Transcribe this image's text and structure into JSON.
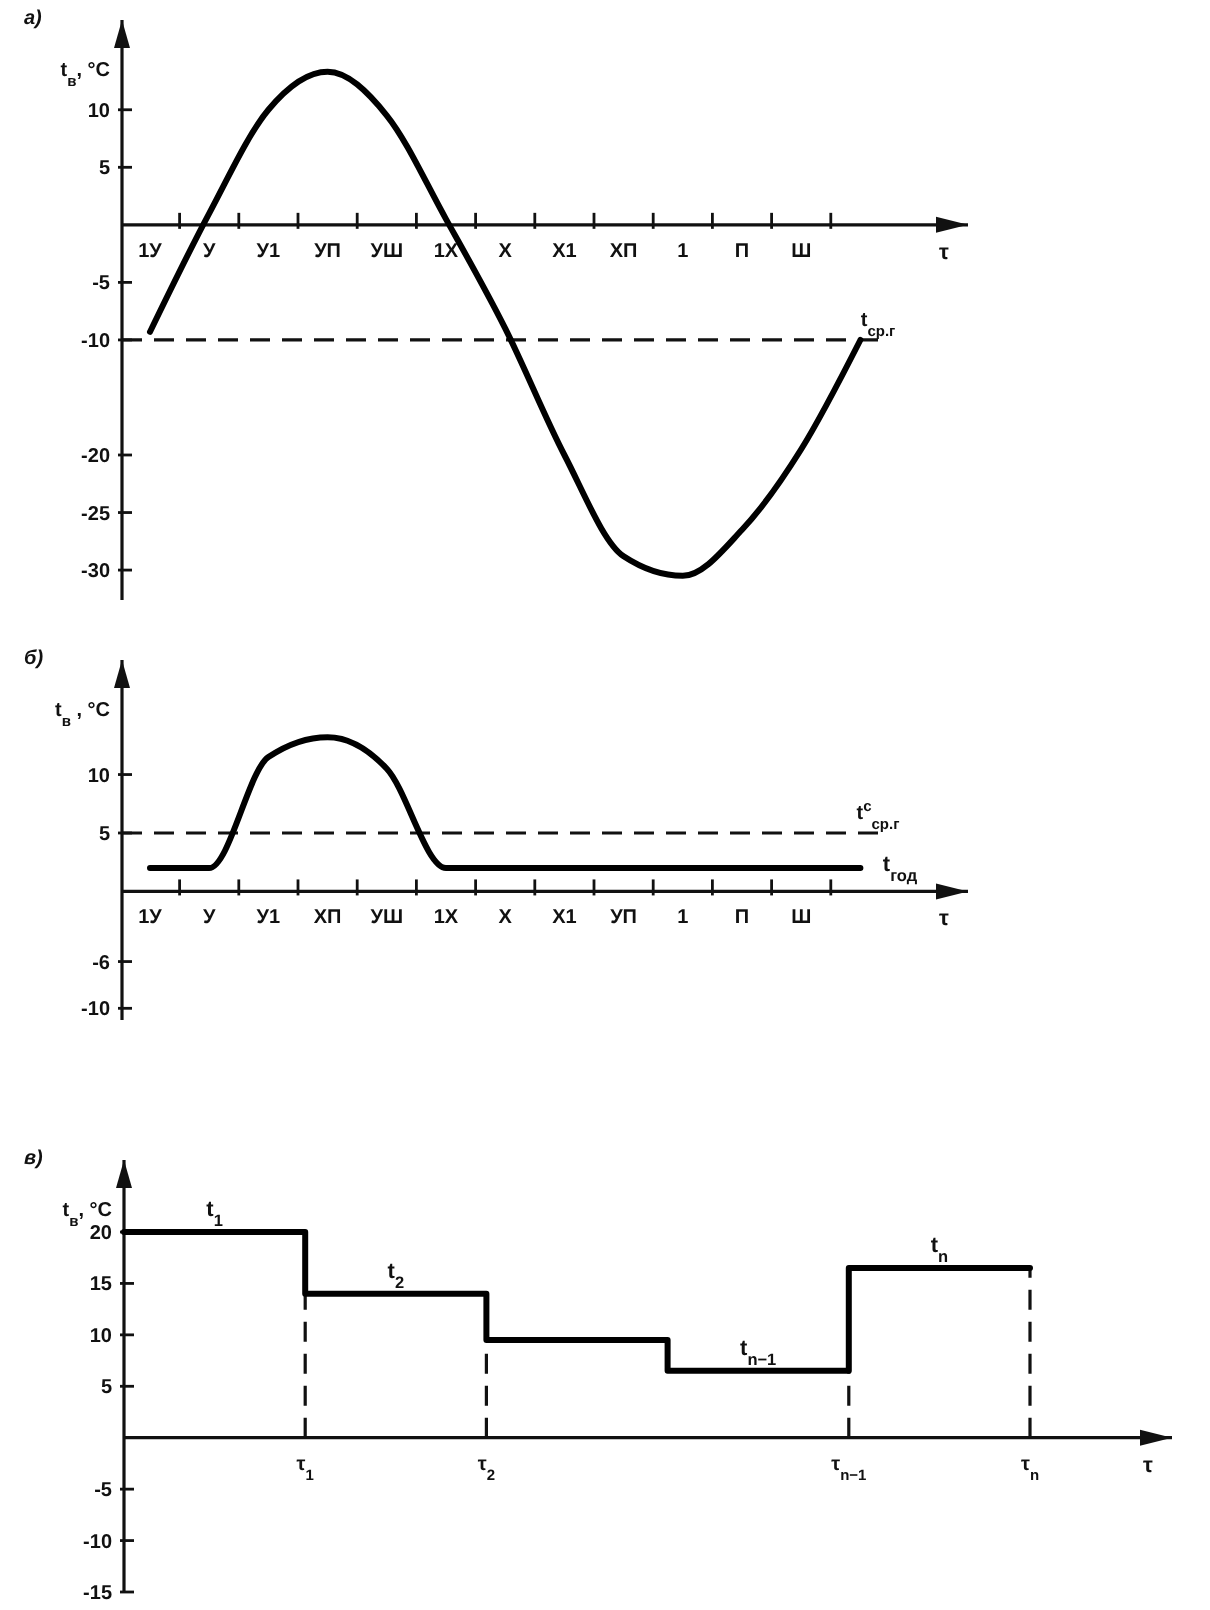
{
  "chart_data": [
    {
      "type": "line",
      "title": "а)",
      "xlabel": "τ",
      "ylabel": "t$_{в}$, °C",
      "color": "#000000",
      "categories": [
        "1У",
        "У",
        "У1",
        "УП",
        "УШ",
        "1Х",
        "Х",
        "Х1",
        "ХП",
        "1",
        "П",
        "Ш",
        null
      ],
      "values": [
        -9.3,
        1,
        10,
        13.3,
        9.5,
        0.5,
        -9,
        -20,
        -28.8,
        -30.5,
        -26.5,
        -19.5,
        -10
      ],
      "ylim": [
        -32.6,
        17.8
      ],
      "yticks": [
        10,
        5,
        -5,
        -10,
        -20,
        -25,
        -30
      ],
      "ref_lines": [
        {
          "axis": "y",
          "value": -10,
          "label": "t$_{ср.г}$",
          "line_style": "dashed"
        }
      ]
    },
    {
      "type": "line",
      "title": "б)",
      "xlabel": "τ",
      "ylabel": "t$_{в}$ , °C",
      "color": "#000000",
      "categories": [
        "1У",
        "У",
        "У1",
        "ХП",
        "УШ",
        "1Х",
        "Х",
        "Х1",
        "УП",
        "1",
        "П",
        "Ш",
        null
      ],
      "values": [
        2,
        2,
        11.5,
        13.2,
        10.5,
        2,
        2,
        2,
        2,
        2,
        2,
        2,
        2
      ],
      "ylim": [
        -11,
        19.8
      ],
      "yticks": [
        10,
        5,
        -6,
        -10
      ],
      "ref_lines": [
        {
          "axis": "y",
          "value": 5,
          "label": "t$^{с}$$_{ср.г}$",
          "line_style": "dashed"
        }
      ],
      "annotations": [
        "t$_{год}$"
      ]
    },
    {
      "type": "step",
      "title": "в)",
      "xlabel": "τ",
      "ylabel": "t$_{в}$, °C",
      "color": "#000000",
      "categories": [
        null,
        "τ$_{1}$",
        "τ$_{2}$",
        null,
        "τ$_{n−1}$",
        "τ$_{n}$"
      ],
      "values": [
        20,
        14,
        9.5,
        6.5,
        16.5,
        16.5
      ],
      "annotations": [
        {
          "text": "t$_{1}$",
          "y": 20
        },
        {
          "text": "t$_{2}$",
          "y": 14
        },
        {
          "text": "t$_{n−1}$",
          "y": 6.5
        },
        {
          "text": "t$_{n}$",
          "y": 16.5
        }
      ],
      "ref_lines": [
        {
          "axis": "x",
          "value": "τ$_{1}$",
          "line_style": "dashed"
        },
        {
          "axis": "x",
          "value": "τ$_{2}$",
          "line_style": "dashed"
        },
        {
          "axis": "x",
          "value": "τ$_{n−1}$",
          "line_style": "dashed"
        },
        {
          "axis": "x",
          "value": "τ$_{n}$",
          "line_style": "dashed"
        }
      ],
      "ylim": [
        -15,
        27
      ],
      "yticks": [
        20,
        15,
        10,
        5,
        -5,
        -10,
        -15
      ]
    }
  ]
}
